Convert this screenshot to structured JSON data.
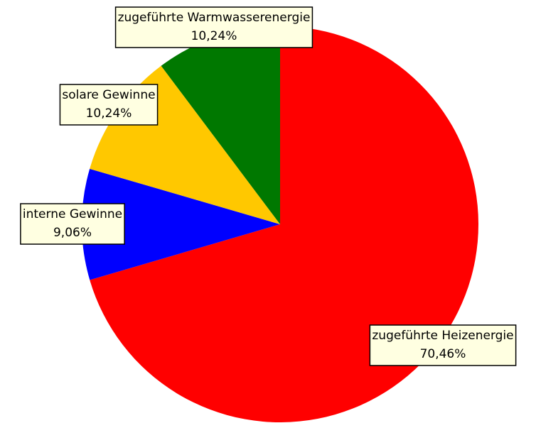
{
  "chart_data": {
    "type": "pie",
    "categories": [
      "zugeführte Heizenergie",
      "interne Gewinne",
      "solare Gewinne",
      "zugeführte Warmwasserenergie"
    ],
    "values": [
      70.46,
      9.06,
      10.24,
      10.24
    ],
    "value_labels": [
      "70,46%",
      "9,06%",
      "10,24%",
      "10,24%"
    ],
    "colors": [
      "#ff0000",
      "#0000ff",
      "#ffc800",
      "#007800"
    ]
  }
}
